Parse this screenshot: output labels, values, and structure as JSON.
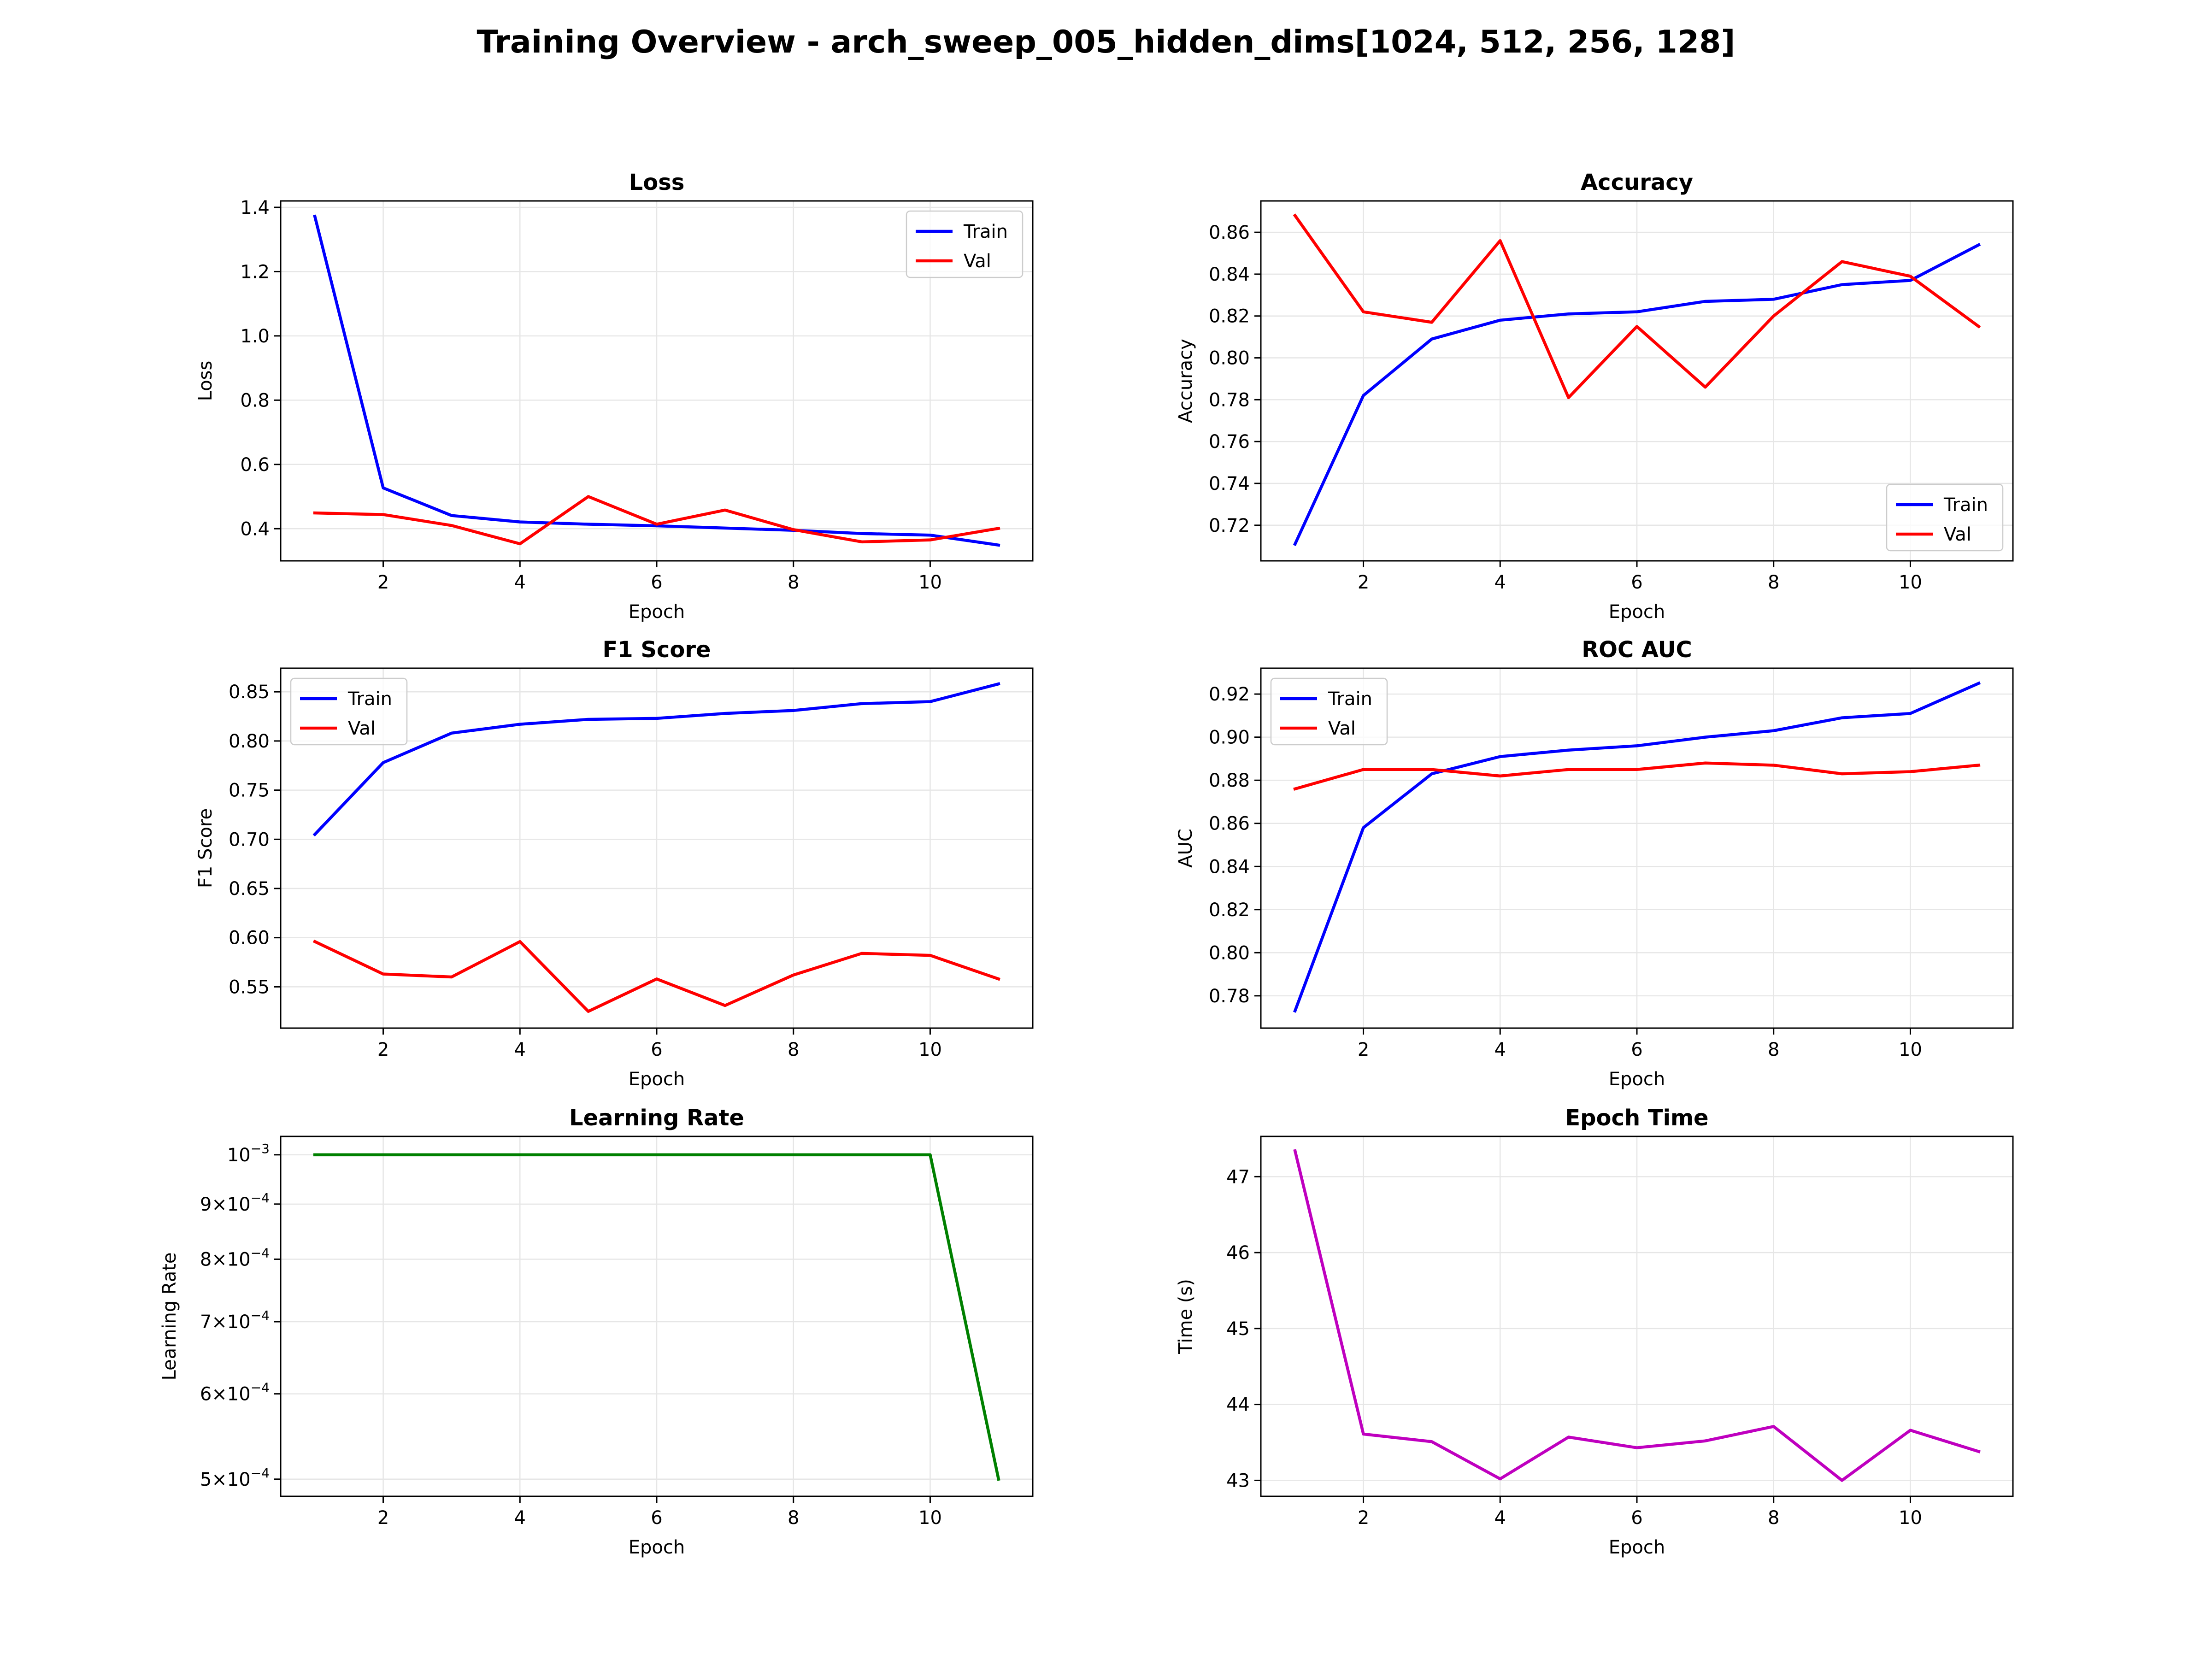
{
  "figure": {
    "title": "Training Overview - arch_sweep_005_hidden_dims[1024, 512, 256, 128]"
  },
  "colors": {
    "train": "#0000ff",
    "val": "#ff0000",
    "lr": "#008000",
    "time": "#bf00bf",
    "grid": "#e6e6e6"
  },
  "chart_data": [
    {
      "id": "loss",
      "type": "line",
      "title": "Loss",
      "xlabel": "Epoch",
      "ylabel": "Loss",
      "x": [
        1,
        2,
        3,
        4,
        5,
        6,
        7,
        8,
        9,
        10,
        11
      ],
      "xlim": [
        0.5,
        11.5
      ],
      "ylim": [
        0.3,
        1.42
      ],
      "xticks": [
        2,
        4,
        6,
        8,
        10
      ],
      "yticks": [
        0.4,
        0.6,
        0.8,
        1.0,
        1.2,
        1.4
      ],
      "ytick_labels": [
        "0.4",
        "0.6",
        "0.8",
        "1.0",
        "1.2",
        "1.4"
      ],
      "grid": true,
      "legend": "upper right",
      "series": [
        {
          "name": "Train",
          "color": "#0000ff",
          "values": [
            1.372,
            0.527,
            0.441,
            0.421,
            0.414,
            0.409,
            0.402,
            0.395,
            0.385,
            0.38,
            0.349
          ]
        },
        {
          "name": "Val",
          "color": "#ff0000",
          "values": [
            0.449,
            0.444,
            0.41,
            0.353,
            0.5,
            0.414,
            0.458,
            0.397,
            0.359,
            0.365,
            0.401
          ]
        }
      ]
    },
    {
      "id": "accuracy",
      "type": "line",
      "title": "Accuracy",
      "xlabel": "Epoch",
      "ylabel": "Accuracy",
      "x": [
        1,
        2,
        3,
        4,
        5,
        6,
        7,
        8,
        9,
        10,
        11
      ],
      "xlim": [
        0.5,
        11.5
      ],
      "ylim": [
        0.703,
        0.875
      ],
      "xticks": [
        2,
        4,
        6,
        8,
        10
      ],
      "yticks": [
        0.72,
        0.74,
        0.76,
        0.78,
        0.8,
        0.82,
        0.84,
        0.86
      ],
      "ytick_labels": [
        "0.72",
        "0.74",
        "0.76",
        "0.78",
        "0.80",
        "0.82",
        "0.84",
        "0.86"
      ],
      "grid": true,
      "legend": "lower right",
      "series": [
        {
          "name": "Train",
          "color": "#0000ff",
          "values": [
            0.711,
            0.782,
            0.809,
            0.818,
            0.821,
            0.822,
            0.827,
            0.828,
            0.835,
            0.837,
            0.854
          ]
        },
        {
          "name": "Val",
          "color": "#ff0000",
          "values": [
            0.868,
            0.822,
            0.817,
            0.856,
            0.781,
            0.815,
            0.786,
            0.82,
            0.846,
            0.839,
            0.815
          ]
        }
      ]
    },
    {
      "id": "f1",
      "type": "line",
      "title": "F1 Score",
      "xlabel": "Epoch",
      "ylabel": "F1 Score",
      "x": [
        1,
        2,
        3,
        4,
        5,
        6,
        7,
        8,
        9,
        10,
        11
      ],
      "xlim": [
        0.5,
        11.5
      ],
      "ylim": [
        0.508,
        0.874
      ],
      "xticks": [
        2,
        4,
        6,
        8,
        10
      ],
      "yticks": [
        0.55,
        0.6,
        0.65,
        0.7,
        0.75,
        0.8,
        0.85
      ],
      "ytick_labels": [
        "0.55",
        "0.60",
        "0.65",
        "0.70",
        "0.75",
        "0.80",
        "0.85"
      ],
      "grid": true,
      "legend": "upper left",
      "series": [
        {
          "name": "Train",
          "color": "#0000ff",
          "values": [
            0.705,
            0.778,
            0.808,
            0.817,
            0.822,
            0.823,
            0.828,
            0.831,
            0.838,
            0.84,
            0.858
          ]
        },
        {
          "name": "Val",
          "color": "#ff0000",
          "values": [
            0.596,
            0.563,
            0.56,
            0.596,
            0.525,
            0.558,
            0.531,
            0.562,
            0.584,
            0.582,
            0.558
          ]
        }
      ]
    },
    {
      "id": "roc_auc",
      "type": "line",
      "title": "ROC AUC",
      "xlabel": "Epoch",
      "ylabel": "AUC",
      "x": [
        1,
        2,
        3,
        4,
        5,
        6,
        7,
        8,
        9,
        10,
        11
      ],
      "xlim": [
        0.5,
        11.5
      ],
      "ylim": [
        0.765,
        0.932
      ],
      "xticks": [
        2,
        4,
        6,
        8,
        10
      ],
      "yticks": [
        0.78,
        0.8,
        0.82,
        0.84,
        0.86,
        0.88,
        0.9,
        0.92
      ],
      "ytick_labels": [
        "0.78",
        "0.80",
        "0.82",
        "0.84",
        "0.86",
        "0.88",
        "0.90",
        "0.92"
      ],
      "grid": true,
      "legend": "upper left",
      "series": [
        {
          "name": "Train",
          "color": "#0000ff",
          "values": [
            0.773,
            0.858,
            0.883,
            0.891,
            0.894,
            0.896,
            0.9,
            0.903,
            0.909,
            0.911,
            0.925
          ]
        },
        {
          "name": "Val",
          "color": "#ff0000",
          "values": [
            0.876,
            0.885,
            0.885,
            0.882,
            0.885,
            0.885,
            0.888,
            0.887,
            0.883,
            0.884,
            0.887
          ]
        }
      ]
    },
    {
      "id": "lr",
      "type": "line",
      "title": "Learning Rate",
      "xlabel": "Epoch",
      "ylabel": "Learning Rate",
      "x": [
        1,
        2,
        3,
        4,
        5,
        6,
        7,
        8,
        9,
        10,
        11
      ],
      "xlim": [
        0.5,
        11.5
      ],
      "yscale": "log",
      "ylim": [
        0.000482,
        0.00104
      ],
      "xticks": [
        2,
        4,
        6,
        8,
        10
      ],
      "yticks": [
        0.0005,
        0.0006,
        0.0007,
        0.0008,
        0.0009,
        0.001
      ],
      "ytick_labels": [
        {
          "base": "5×10",
          "exp": "−4"
        },
        {
          "base": "6×10",
          "exp": "−4"
        },
        {
          "base": "7×10",
          "exp": "−4"
        },
        {
          "base": "8×10",
          "exp": "−4"
        },
        {
          "base": "9×10",
          "exp": "−4"
        },
        {
          "base": "10",
          "exp": "−3"
        }
      ],
      "grid": true,
      "series": [
        {
          "color": "#008000",
          "values": [
            0.001,
            0.001,
            0.001,
            0.001,
            0.001,
            0.001,
            0.001,
            0.001,
            0.001,
            0.001,
            0.0005
          ]
        }
      ]
    },
    {
      "id": "epoch_time",
      "type": "line",
      "title": "Epoch Time",
      "xlabel": "Epoch",
      "ylabel": "Time (s)",
      "x": [
        1,
        2,
        3,
        4,
        5,
        6,
        7,
        8,
        9,
        10,
        11
      ],
      "xlim": [
        0.5,
        11.5
      ],
      "ylim": [
        42.79,
        47.53
      ],
      "xticks": [
        2,
        4,
        6,
        8,
        10
      ],
      "yticks": [
        43,
        44,
        45,
        46,
        47
      ],
      "ytick_labels": [
        "43",
        "44",
        "45",
        "46",
        "47"
      ],
      "grid": true,
      "series": [
        {
          "color": "#bf00bf",
          "values": [
            47.34,
            43.61,
            43.51,
            43.02,
            43.57,
            43.43,
            43.52,
            43.71,
            43.0,
            43.66,
            43.38
          ]
        }
      ]
    }
  ]
}
